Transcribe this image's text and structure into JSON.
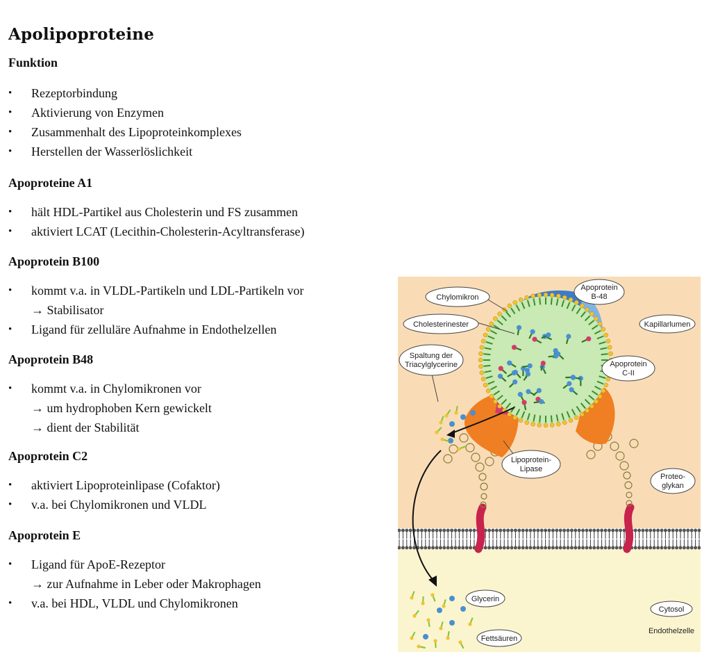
{
  "title": "Apolipoproteine",
  "sections": [
    {
      "heading": "Funktion",
      "items": [
        {
          "lines": [
            "Rezeptorbindung"
          ]
        },
        {
          "lines": [
            "Aktivierung von Enzymen"
          ]
        },
        {
          "lines": [
            "Zusammenhalt des Lipoproteinkomplexes"
          ]
        },
        {
          "lines": [
            "Herstellen der Wasserlöslichkeit"
          ]
        }
      ]
    },
    {
      "heading": "Apoproteine A1",
      "items": [
        {
          "lines": [
            "hält HDL-Partikel aus Cholesterin und FS zusammen"
          ]
        },
        {
          "lines": [
            "aktiviert LCAT (Lecithin-Cholesterin-Acyltransferase)"
          ]
        }
      ]
    },
    {
      "heading": "Apoprotein B100",
      "items": [
        {
          "lines": [
            "kommt v.a. in VLDL-Partikeln und LDL-Partikeln vor",
            "→ Stabilisator"
          ]
        },
        {
          "lines": [
            "Ligand für zelluläre Aufnahme in Endothelzellen"
          ]
        }
      ]
    },
    {
      "heading": "Apoprotein B48",
      "items": [
        {
          "lines": [
            "kommt v.a. in Chylomikronen vor",
            "→ um hydrophoben Kern gewickelt",
            "→ dient der Stabilität"
          ]
        }
      ]
    },
    {
      "heading": "Apoprotein C2",
      "items": [
        {
          "lines": [
            "aktiviert Lipoproteinlipase (Cofaktor)"
          ]
        },
        {
          "lines": [
            "v.a. bei Chylomikronen und VLDL"
          ]
        }
      ]
    },
    {
      "heading": "Apoprotein E",
      "items": [
        {
          "lines": [
            "Ligand für ApoE-Rezeptor",
            "→ zur Aufnahme in Leber oder Makrophagen"
          ]
        },
        {
          "lines": [
            "v.a. bei HDL, VLDL und Chylomikronen"
          ]
        }
      ]
    }
  ],
  "figure": {
    "labels": {
      "chylomikron": "Chylomikron",
      "apoprotein_b48_l1": "Apoprotein",
      "apoprotein_b48_l2": "B-48",
      "cholesterinester": "Cholesterinester",
      "kapillarlumen": "Kapillarlumen",
      "spaltung_l1": "Spaltung der",
      "spaltung_l2": "Triacylglycerine",
      "apoprotein_c2_l1": "Apoprotein",
      "apoprotein_c2_l2": "C-II",
      "lipase_l1": "Lipoprotein-",
      "lipase_l2": "Lipase",
      "proteoglykan_l1": "Proteo-",
      "proteoglykan_l2": "glykan",
      "glycerin": "Glycerin",
      "cytosol": "Cytosol",
      "fettsaeuren": "Fettsäuren",
      "endothelzelle": "Endothelzelle"
    },
    "colors": {
      "lumen": "#f9dcb6",
      "cytosol": "#fbf5cf",
      "core": "#c9e9b5",
      "apo_b48": "#3b7cc9",
      "apo_c2": "#d63a6a",
      "lipase": "#ef7f22",
      "receptor": "#c7234c",
      "phospholipid_head": "#f2c230",
      "glycerin": "#4a8fd0",
      "fatty_acid": "#8ac641"
    }
  }
}
